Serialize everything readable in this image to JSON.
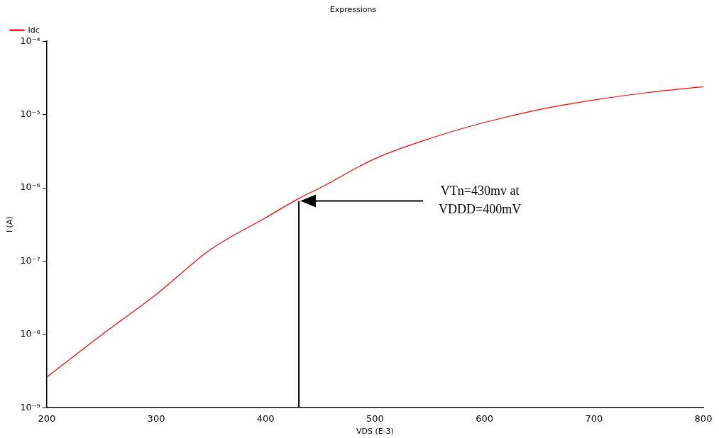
{
  "chart_data": {
    "type": "line",
    "title": "Expressions",
    "xlabel": "VDS (E-3)",
    "ylabel": "I (A)",
    "x": [
      200,
      250,
      300,
      350,
      400,
      430,
      450,
      500,
      550,
      600,
      650,
      700,
      750,
      800
    ],
    "series": [
      {
        "name": "Idc",
        "color": "#ff0000",
        "values": [
          2.6e-09,
          9.8e-09,
          3.5e-08,
          1.45e-07,
          3.9e-07,
          7.1e-07,
          1e-06,
          2.5e-06,
          4.7e-06,
          7.8e-06,
          1.17e-05,
          1.58e-05,
          2e-05,
          2.4e-05
        ]
      }
    ],
    "xlim": [
      200,
      800
    ],
    "xticks": [
      200,
      300,
      400,
      500,
      600,
      700,
      800
    ],
    "ylim": [
      1e-09,
      0.0001
    ],
    "yticks": [
      {
        "value": 1e-09,
        "label": "10⁻⁹"
      },
      {
        "value": 1e-08,
        "label": "10⁻⁸"
      },
      {
        "value": 1e-07,
        "label": "10⁻⁷"
      },
      {
        "value": 1e-06,
        "label": "10⁻⁶"
      },
      {
        "value": 1e-05,
        "label": "10⁻⁵"
      },
      {
        "value": 0.0001,
        "label": "10⁻⁴"
      }
    ],
    "log": "y",
    "grid": false,
    "legend": "top left",
    "marker": "none",
    "line_style": "solid",
    "annotations": [
      "VTn=430mv at\nVDDD=400mV"
    ]
  }
}
